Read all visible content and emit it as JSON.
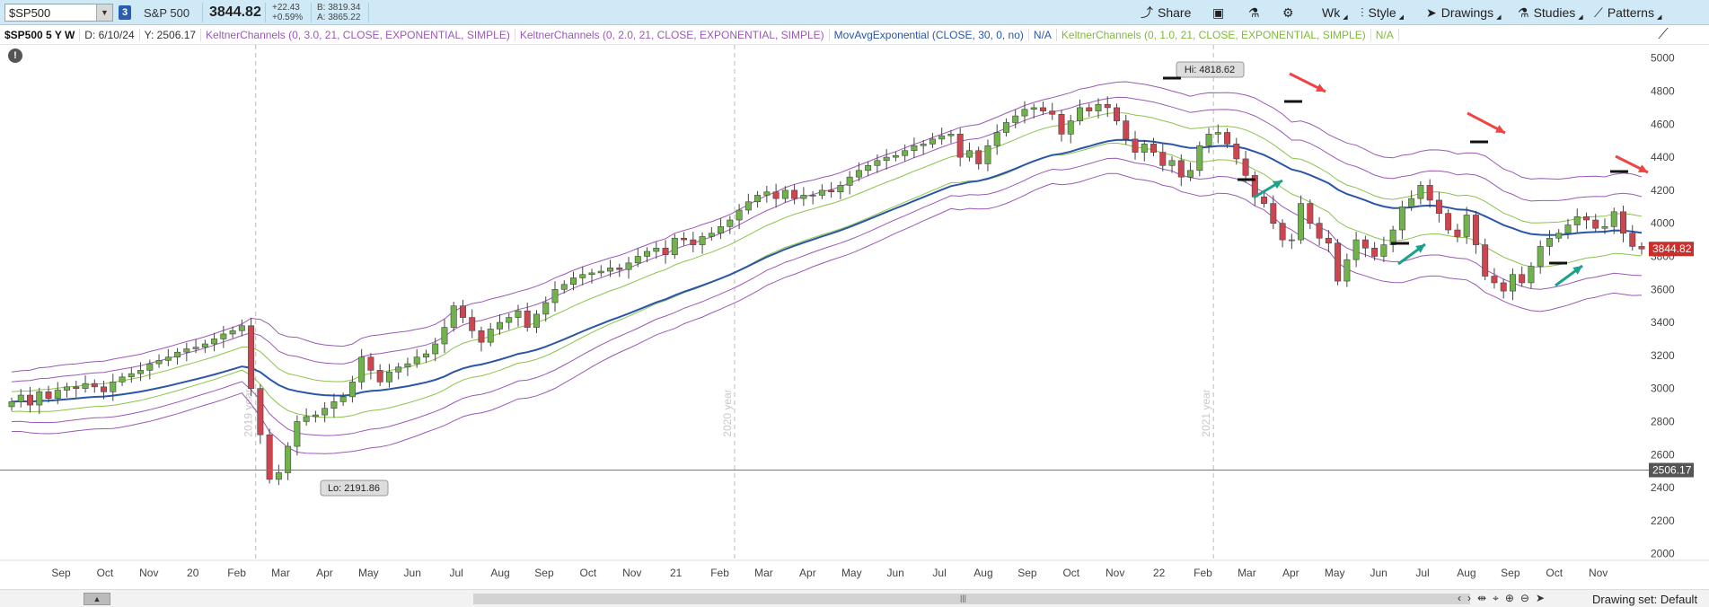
{
  "toolbar": {
    "symbol": "$SP500",
    "link_number": "3",
    "name": "S&P 500",
    "last": "3844.82",
    "change": "+22.43",
    "change_pct": "+0.59%",
    "bid": "B: 3819.34",
    "ask": "A: 3865.22",
    "share_label": "Share",
    "period_label": "Wk",
    "style_label": "Style",
    "drawings_label": "Drawings",
    "studies_label": "Studies",
    "patterns_label": "Patterns"
  },
  "studybar": {
    "symbol": "$SP500 5 Y W",
    "date": "D: 6/10/24",
    "yval": "Y: 2506.17",
    "kc1": "KeltnerChannels (0, 3.0, 21, CLOSE, EXPONENTIAL, SIMPLE)",
    "kc2": "KeltnerChannels (0, 2.0, 21, CLOSE, EXPONENTIAL, SIMPLE)",
    "ema": "MovAvgExponential (CLOSE, 30, 0, no)",
    "na1": "N/A",
    "kc3": "KeltnerChannels (0, 1.0, 21, CLOSE, EXPONENTIAL, SIMPLE)",
    "na2": "N/A"
  },
  "bottom": {
    "drawing_set": "Drawing set: Default"
  },
  "colors": {
    "up_candle": "#6fb34a",
    "down_candle": "#d0444f",
    "keltner_outer": "#9b59b6",
    "keltner_inner": "#8bc34a",
    "ema": "#2a56a8",
    "arrow_red": "#ee4444",
    "arrow_teal": "#1aa38a"
  },
  "chart_data": {
    "type": "candlestick",
    "y_axis": {
      "ticks": [
        "2000",
        "2200",
        "2400",
        "2600",
        "2800",
        "3000",
        "3200",
        "3400",
        "3600",
        "3800",
        "4000",
        "4200",
        "4400",
        "4600",
        "4800",
        "5000"
      ],
      "range": [
        1960,
        5080
      ],
      "last_price_label": "3844.82",
      "crosshair_label": "2506.17"
    },
    "x_axis": {
      "labels": [
        "Sep",
        "Oct",
        "Nov",
        "20",
        "Feb",
        "Mar",
        "Apr",
        "May",
        "Jun",
        "Jul",
        "Aug",
        "Sep",
        "Oct",
        "Nov",
        "21",
        "Feb",
        "Mar",
        "Apr",
        "May",
        "Jun",
        "Jul",
        "Aug",
        "Sep",
        "Oct",
        "Nov",
        "22",
        "Feb",
        "Mar",
        "Apr",
        "May",
        "Jun",
        "Jul",
        "Aug",
        "Sep",
        "Oct",
        "Nov"
      ],
      "year_markers": [
        "2019 year",
        "2020 year",
        "2021 year"
      ]
    },
    "annotations": {
      "high": "Hi: 4818.62",
      "low": "Lo: 2191.86"
    },
    "weekly_closes": [
      2920,
      2960,
      2900,
      2980,
      2940,
      2990,
      3010,
      3000,
      3030,
      3010,
      2980,
      3040,
      3070,
      3090,
      3110,
      3150,
      3170,
      3190,
      3220,
      3240,
      3250,
      3270,
      3300,
      3330,
      3350,
      3380,
      3000,
      2720,
      2450,
      2490,
      2650,
      2800,
      2830,
      2840,
      2880,
      2920,
      2950,
      3040,
      3190,
      3110,
      3040,
      3100,
      3130,
      3150,
      3190,
      3210,
      3270,
      3370,
      3500,
      3430,
      3350,
      3280,
      3360,
      3400,
      3430,
      3470,
      3370,
      3450,
      3520,
      3600,
      3630,
      3670,
      3690,
      3700,
      3710,
      3730,
      3720,
      3760,
      3800,
      3830,
      3850,
      3810,
      3910,
      3900,
      3870,
      3920,
      3940,
      3980,
      4020,
      4080,
      4130,
      4170,
      4190,
      4150,
      4200,
      4150,
      4170,
      4170,
      4200,
      4190,
      4230,
      4280,
      4320,
      4350,
      4380,
      4400,
      4410,
      4440,
      4470,
      4480,
      4510,
      4530,
      4540,
      4400,
      4440,
      4360,
      4470,
      4550,
      4610,
      4650,
      4690,
      4700,
      4680,
      4660,
      4540,
      4620,
      4700,
      4680,
      4720,
      4700,
      4620,
      4510,
      4430,
      4480,
      4430,
      4350,
      4380,
      4280,
      4320,
      4470,
      4540,
      4550,
      4480,
      4390,
      4290,
      4160,
      4120,
      4000,
      3900,
      3900,
      4120,
      4000,
      3910,
      3880,
      3650,
      3780,
      3900,
      3850,
      3800,
      3870,
      3960,
      4100,
      4150,
      4230,
      4140,
      4060,
      3960,
      3920,
      4050,
      3870,
      3680,
      3640,
      3590,
      3690,
      3640,
      3740,
      3860,
      3910,
      3940,
      3990,
      4040,
      4020,
      3970,
      3980,
      4070,
      3940,
      3860,
      3845
    ],
    "keltner_channels": [
      {
        "name": "KeltnerChannels (0, 3.0, 21)",
        "mult": 3.0
      },
      {
        "name": "KeltnerChannels (0, 2.0, 21)",
        "mult": 2.0
      },
      {
        "name": "KeltnerChannels (0, 1.0, 21)",
        "mult": 1.0
      }
    ],
    "ema_length": 30
  }
}
